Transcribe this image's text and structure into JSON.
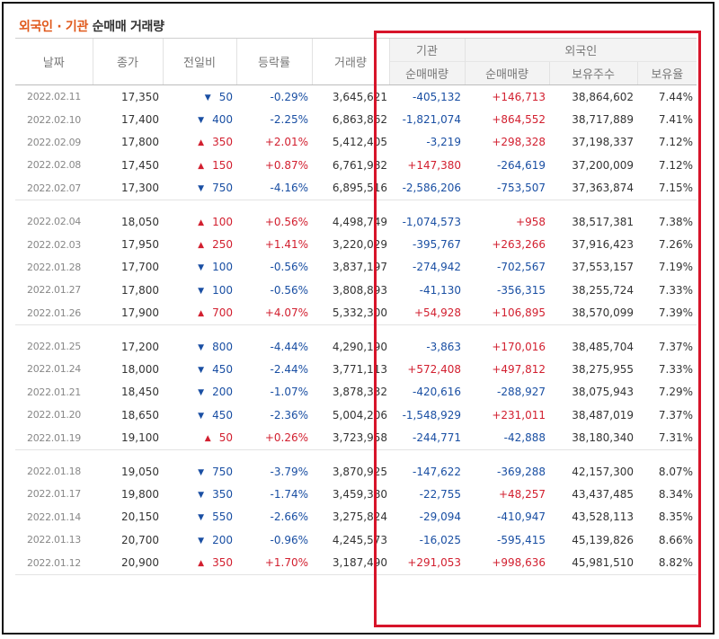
{
  "title": {
    "part1": "외국인",
    "sep": " · ",
    "part2": "기관",
    "part3": " 순매매 거래량"
  },
  "headers": {
    "date": "날짜",
    "close": "종가",
    "change": "전일비",
    "rate": "등락률",
    "volume": "거래량",
    "institution": "기관",
    "foreign": "외국인",
    "inst_net": "순매매량",
    "foreign_net": "순매매량",
    "foreign_hold": "보유주수",
    "foreign_ratio": "보유율"
  },
  "colors": {
    "up": "#d21f2f",
    "down": "#1a4fa3",
    "highlight_box": "#d7142a",
    "title_accent": "#e0591b"
  },
  "groups": [
    [
      {
        "date": "2022.02.11",
        "close": "17,350",
        "dir": "down",
        "change": "50",
        "rate": "-0.29%",
        "volume": "3,645,621",
        "inst": "-405,132",
        "foreign": "+146,713",
        "hold": "38,864,602",
        "ratio": "7.44%"
      },
      {
        "date": "2022.02.10",
        "close": "17,400",
        "dir": "down",
        "change": "400",
        "rate": "-2.25%",
        "volume": "6,863,862",
        "inst": "-1,821,074",
        "foreign": "+864,552",
        "hold": "38,717,889",
        "ratio": "7.41%"
      },
      {
        "date": "2022.02.09",
        "close": "17,800",
        "dir": "up",
        "change": "350",
        "rate": "+2.01%",
        "volume": "5,412,405",
        "inst": "-3,219",
        "foreign": "+298,328",
        "hold": "37,198,337",
        "ratio": "7.12%"
      },
      {
        "date": "2022.02.08",
        "close": "17,450",
        "dir": "up",
        "change": "150",
        "rate": "+0.87%",
        "volume": "6,761,982",
        "inst": "+147,380",
        "foreign": "-264,619",
        "hold": "37,200,009",
        "ratio": "7.12%"
      },
      {
        "date": "2022.02.07",
        "close": "17,300",
        "dir": "down",
        "change": "750",
        "rate": "-4.16%",
        "volume": "6,895,516",
        "inst": "-2,586,206",
        "foreign": "-753,507",
        "hold": "37,363,874",
        "ratio": "7.15%"
      }
    ],
    [
      {
        "date": "2022.02.04",
        "close": "18,050",
        "dir": "up",
        "change": "100",
        "rate": "+0.56%",
        "volume": "4,498,749",
        "inst": "-1,074,573",
        "foreign": "+958",
        "hold": "38,517,381",
        "ratio": "7.38%"
      },
      {
        "date": "2022.02.03",
        "close": "17,950",
        "dir": "up",
        "change": "250",
        "rate": "+1.41%",
        "volume": "3,220,029",
        "inst": "-395,767",
        "foreign": "+263,266",
        "hold": "37,916,423",
        "ratio": "7.26%"
      },
      {
        "date": "2022.01.28",
        "close": "17,700",
        "dir": "down",
        "change": "100",
        "rate": "-0.56%",
        "volume": "3,837,197",
        "inst": "-274,942",
        "foreign": "-702,567",
        "hold": "37,553,157",
        "ratio": "7.19%"
      },
      {
        "date": "2022.01.27",
        "close": "17,800",
        "dir": "down",
        "change": "100",
        "rate": "-0.56%",
        "volume": "3,808,893",
        "inst": "-41,130",
        "foreign": "-356,315",
        "hold": "38,255,724",
        "ratio": "7.33%"
      },
      {
        "date": "2022.01.26",
        "close": "17,900",
        "dir": "up",
        "change": "700",
        "rate": "+4.07%",
        "volume": "5,332,300",
        "inst": "+54,928",
        "foreign": "+106,895",
        "hold": "38,570,099",
        "ratio": "7.39%"
      }
    ],
    [
      {
        "date": "2022.01.25",
        "close": "17,200",
        "dir": "down",
        "change": "800",
        "rate": "-4.44%",
        "volume": "4,290,190",
        "inst": "-3,863",
        "foreign": "+170,016",
        "hold": "38,485,704",
        "ratio": "7.37%"
      },
      {
        "date": "2022.01.24",
        "close": "18,000",
        "dir": "down",
        "change": "450",
        "rate": "-2.44%",
        "volume": "3,771,113",
        "inst": "+572,408",
        "foreign": "+497,812",
        "hold": "38,275,955",
        "ratio": "7.33%"
      },
      {
        "date": "2022.01.21",
        "close": "18,450",
        "dir": "down",
        "change": "200",
        "rate": "-1.07%",
        "volume": "3,878,332",
        "inst": "-420,616",
        "foreign": "-288,927",
        "hold": "38,075,943",
        "ratio": "7.29%"
      },
      {
        "date": "2022.01.20",
        "close": "18,650",
        "dir": "down",
        "change": "450",
        "rate": "-2.36%",
        "volume": "5,004,206",
        "inst": "-1,548,929",
        "foreign": "+231,011",
        "hold": "38,487,019",
        "ratio": "7.37%"
      },
      {
        "date": "2022.01.19",
        "close": "19,100",
        "dir": "up",
        "change": "50",
        "rate": "+0.26%",
        "volume": "3,723,958",
        "inst": "-244,771",
        "foreign": "-42,888",
        "hold": "38,180,340",
        "ratio": "7.31%"
      }
    ],
    [
      {
        "date": "2022.01.18",
        "close": "19,050",
        "dir": "down",
        "change": "750",
        "rate": "-3.79%",
        "volume": "3,870,925",
        "inst": "-147,622",
        "foreign": "-369,288",
        "hold": "42,157,300",
        "ratio": "8.07%"
      },
      {
        "date": "2022.01.17",
        "close": "19,800",
        "dir": "down",
        "change": "350",
        "rate": "-1.74%",
        "volume": "3,459,380",
        "inst": "-22,755",
        "foreign": "+48,257",
        "hold": "43,437,485",
        "ratio": "8.34%"
      },
      {
        "date": "2022.01.14",
        "close": "20,150",
        "dir": "down",
        "change": "550",
        "rate": "-2.66%",
        "volume": "3,275,824",
        "inst": "-29,094",
        "foreign": "-410,947",
        "hold": "43,528,113",
        "ratio": "8.35%"
      },
      {
        "date": "2022.01.13",
        "close": "20,700",
        "dir": "down",
        "change": "200",
        "rate": "-0.96%",
        "volume": "4,245,573",
        "inst": "-16,025",
        "foreign": "-595,415",
        "hold": "45,139,826",
        "ratio": "8.66%"
      },
      {
        "date": "2022.01.12",
        "close": "20,900",
        "dir": "up",
        "change": "350",
        "rate": "+1.70%",
        "volume": "3,187,490",
        "inst": "+291,053",
        "foreign": "+998,636",
        "hold": "45,981,510",
        "ratio": "8.82%"
      }
    ]
  ]
}
